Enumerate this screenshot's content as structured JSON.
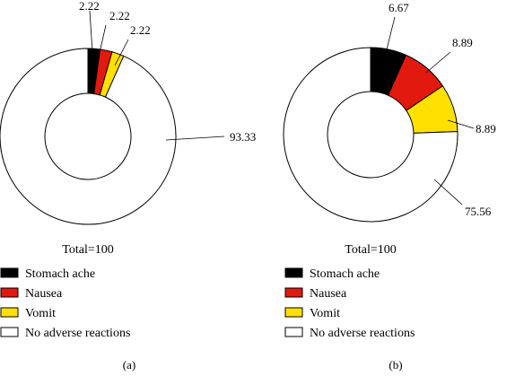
{
  "chart_data": [
    {
      "type": "pie",
      "panel_label": "(a)",
      "total_label": "Total=100",
      "slices": [
        {
          "label": "Stomach ache",
          "value": 2.22,
          "value_label": "2.22",
          "color": "#000000"
        },
        {
          "label": "Nausea",
          "value": 2.22,
          "value_label": "2.22",
          "color": "#e2190f"
        },
        {
          "label": "Vomit",
          "value": 2.22,
          "value_label": "2.22",
          "color": "#ffe000"
        },
        {
          "label": "No adverse reactions",
          "value": 93.33,
          "value_label": "93.33",
          "color": "#ffffff"
        }
      ],
      "legend_position": "bottom-left"
    },
    {
      "type": "pie",
      "panel_label": "(b)",
      "total_label": "Total=100",
      "slices": [
        {
          "label": "Stomach ache",
          "value": 6.67,
          "value_label": "6.67",
          "color": "#000000"
        },
        {
          "label": "Nausea",
          "value": 8.89,
          "value_label": "8.89",
          "color": "#e2190f"
        },
        {
          "label": "Vomit",
          "value": 8.89,
          "value_label": "8.89",
          "color": "#ffe000"
        },
        {
          "label": "No adverse reactions",
          "value": 75.56,
          "value_label": "75.56",
          "color": "#ffffff"
        }
      ],
      "legend_position": "bottom-left"
    }
  ]
}
